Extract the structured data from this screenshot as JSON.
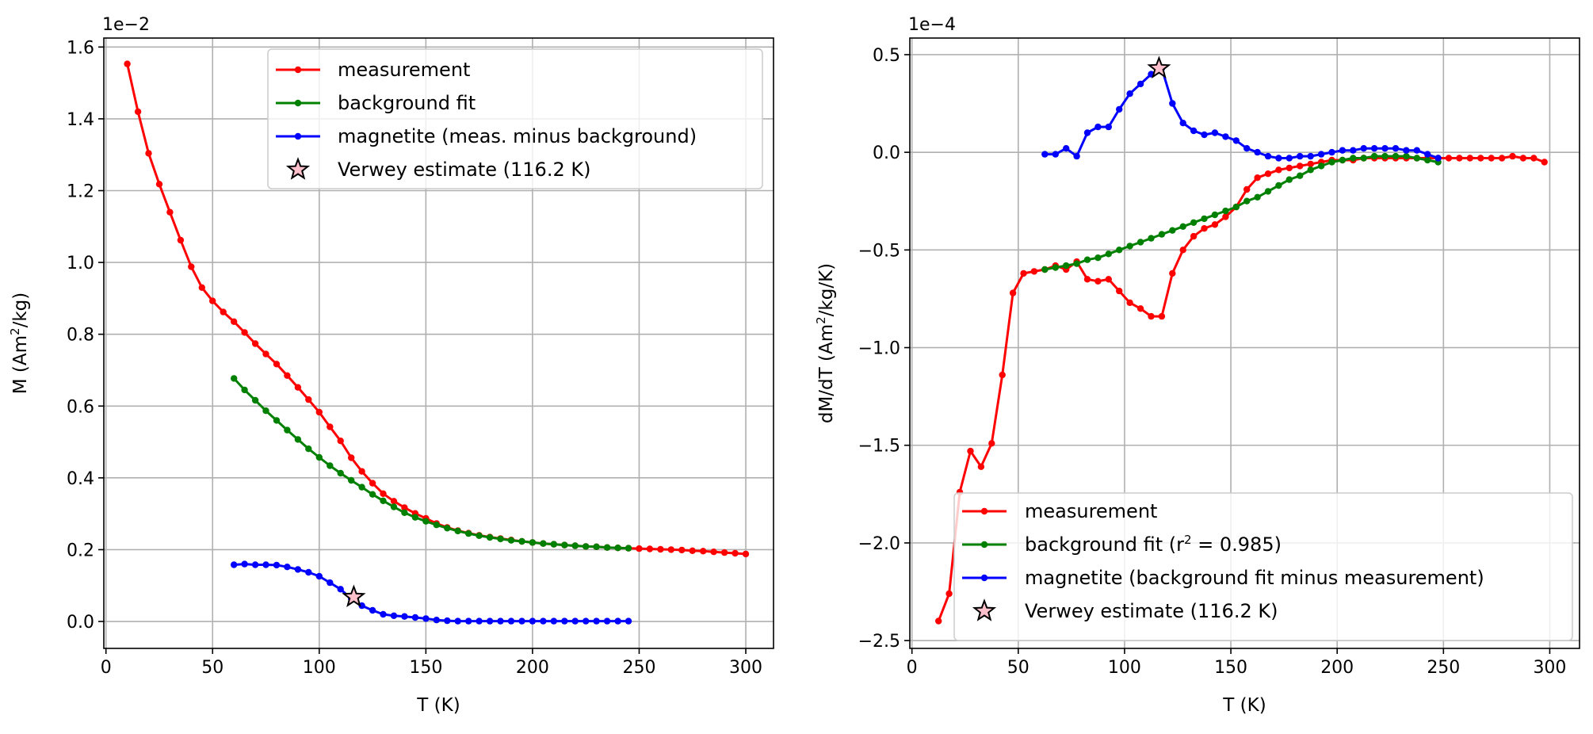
{
  "chart_data": [
    {
      "type": "line",
      "xlabel": "T (K)",
      "ylabel": "M (Am²/kg)",
      "ylabel_parts": {
        "pre": "M (Am",
        "sup": "2",
        "post": "/kg)"
      },
      "offset_label": {
        "base": "1e",
        "exp": "−2"
      },
      "scale": 0.01,
      "xlim": [
        -1,
        313
      ],
      "ylim": [
        -0.075,
        1.625
      ],
      "xticks": [
        0,
        50,
        100,
        150,
        200,
        250,
        300
      ],
      "xtick_labels": [
        "0",
        "50",
        "100",
        "150",
        "200",
        "250",
        "300"
      ],
      "yticks": [
        0,
        0.2,
        0.4,
        0.6,
        0.8,
        1.0,
        1.2,
        1.4,
        1.6
      ],
      "ytick_labels": [
        "0.0",
        "0.2",
        "0.4",
        "0.6",
        "0.8",
        "1.0",
        "1.2",
        "1.4",
        "1.6"
      ],
      "grid": true,
      "legend_position": "upper-center",
      "series": [
        {
          "name": "measurement",
          "color": "#ff0000",
          "x": [
            10,
            15,
            20,
            25,
            30,
            35,
            40,
            45,
            50,
            55,
            60,
            65,
            70,
            75,
            80,
            85,
            90,
            95,
            100,
            105,
            110,
            115,
            120,
            125,
            130,
            135,
            140,
            145,
            150,
            155,
            160,
            165,
            170,
            175,
            180,
            185,
            190,
            195,
            200,
            205,
            210,
            215,
            220,
            225,
            230,
            235,
            240,
            245,
            250,
            255,
            260,
            265,
            270,
            275,
            280,
            285,
            290,
            295,
            300
          ],
          "y": [
            1.553,
            1.42,
            1.304,
            1.218,
            1.14,
            1.062,
            0.988,
            0.93,
            0.893,
            0.862,
            0.835,
            0.805,
            0.774,
            0.745,
            0.717,
            0.685,
            0.652,
            0.618,
            0.583,
            0.542,
            0.503,
            0.456,
            0.418,
            0.385,
            0.356,
            0.335,
            0.317,
            0.301,
            0.287,
            0.273,
            0.262,
            0.253,
            0.246,
            0.24,
            0.235,
            0.231,
            0.227,
            0.223,
            0.22,
            0.217,
            0.215,
            0.213,
            0.211,
            0.209,
            0.208,
            0.206,
            0.205,
            0.204,
            0.203,
            0.202,
            0.201,
            0.2,
            0.199,
            0.197,
            0.196,
            0.194,
            0.192,
            0.19,
            0.188
          ]
        },
        {
          "name": "background fit",
          "color": "#008000",
          "x": [
            60,
            65,
            70,
            75,
            80,
            85,
            90,
            95,
            100,
            105,
            110,
            115,
            120,
            125,
            130,
            135,
            140,
            145,
            150,
            155,
            160,
            165,
            170,
            175,
            180,
            185,
            190,
            195,
            200,
            205,
            210,
            215,
            220,
            225,
            230,
            235,
            240,
            245
          ],
          "y": [
            0.677,
            0.645,
            0.616,
            0.587,
            0.56,
            0.533,
            0.507,
            0.481,
            0.457,
            0.434,
            0.413,
            0.393,
            0.374,
            0.354,
            0.336,
            0.319,
            0.303,
            0.29,
            0.279,
            0.269,
            0.26,
            0.252,
            0.245,
            0.239,
            0.234,
            0.23,
            0.226,
            0.223,
            0.22,
            0.217,
            0.215,
            0.213,
            0.211,
            0.209,
            0.208,
            0.206,
            0.205,
            0.204
          ]
        },
        {
          "name": "magnetite (meas. minus background)",
          "color": "#0000ff",
          "x": [
            60,
            65,
            70,
            75,
            80,
            85,
            90,
            95,
            100,
            105,
            110,
            115,
            120,
            125,
            130,
            135,
            140,
            145,
            150,
            155,
            160,
            165,
            170,
            175,
            180,
            185,
            190,
            195,
            200,
            205,
            210,
            215,
            220,
            225,
            230,
            235,
            240,
            245
          ],
          "y": [
            0.158,
            0.16,
            0.158,
            0.158,
            0.157,
            0.152,
            0.145,
            0.137,
            0.126,
            0.108,
            0.09,
            0.063,
            0.044,
            0.031,
            0.02,
            0.016,
            0.014,
            0.011,
            0.008,
            0.004,
            0.002,
            0.001,
            0.001,
            0.001,
            0.001,
            0.001,
            0.001,
            0.001,
            0.001,
            0.001,
            0.001,
            0.001,
            0.001,
            0.001,
            0.001,
            0.001,
            0.001,
            0.001
          ]
        }
      ],
      "marker": {
        "name": "Verwey estimate (116.2 K)",
        "x": 116.2,
        "y": 0.068,
        "facecolor": "#ffc0cb"
      }
    },
    {
      "type": "line",
      "xlabel": "T (K)",
      "ylabel": "dM/dT (Am²/kg/K)",
      "ylabel_parts": {
        "pre": "dM/dT (Am",
        "sup": "2",
        "post": "/kg/K)"
      },
      "offset_label": {
        "base": "1e",
        "exp": "−4"
      },
      "scale": 0.0001,
      "xlim": [
        -1,
        314
      ],
      "ylim": [
        -2.54,
        0.585
      ],
      "xticks": [
        0,
        50,
        100,
        150,
        200,
        250,
        300
      ],
      "xtick_labels": [
        "0",
        "50",
        "100",
        "150",
        "200",
        "250",
        "300"
      ],
      "yticks": [
        -2.5,
        -2.0,
        -1.5,
        -1.0,
        -0.5,
        0.0,
        0.5
      ],
      "ytick_labels": [
        "−2.5",
        "−2.0",
        "−1.5",
        "−1.0",
        "−0.5",
        "0.0",
        "0.5"
      ],
      "grid": true,
      "legend_position": "lower-right",
      "series": [
        {
          "name": "measurement",
          "color": "#ff0000",
          "x": [
            12.5,
            17.5,
            22.5,
            27.5,
            32.5,
            37.5,
            42.5,
            47.5,
            52.5,
            57.5,
            62.5,
            67.5,
            72.5,
            77.5,
            82.5,
            87.5,
            92.5,
            97.5,
            102.5,
            107.5,
            112.5,
            117.5,
            122.5,
            127.5,
            132.5,
            137.5,
            142.5,
            147.5,
            152.5,
            157.5,
            162.5,
            167.5,
            172.5,
            177.5,
            182.5,
            187.5,
            192.5,
            197.5,
            202.5,
            207.5,
            212.5,
            217.5,
            222.5,
            227.5,
            232.5,
            237.5,
            242.5,
            247.5,
            252.5,
            257.5,
            262.5,
            267.5,
            272.5,
            277.5,
            282.5,
            287.5,
            292.5,
            297.5
          ],
          "y": [
            -2.4,
            -2.26,
            -1.74,
            -1.53,
            -1.61,
            -1.49,
            -1.14,
            -0.72,
            -0.62,
            -0.61,
            -0.6,
            -0.58,
            -0.6,
            -0.56,
            -0.65,
            -0.66,
            -0.65,
            -0.71,
            -0.77,
            -0.8,
            -0.84,
            -0.84,
            -0.62,
            -0.5,
            -0.43,
            -0.39,
            -0.37,
            -0.33,
            -0.28,
            -0.19,
            -0.13,
            -0.11,
            -0.09,
            -0.08,
            -0.07,
            -0.06,
            -0.05,
            -0.04,
            -0.04,
            -0.04,
            -0.03,
            -0.03,
            -0.03,
            -0.03,
            -0.03,
            -0.03,
            -0.03,
            -0.03,
            -0.03,
            -0.03,
            -0.03,
            -0.03,
            -0.03,
            -0.03,
            -0.02,
            -0.03,
            -0.03,
            -0.05
          ]
        },
        {
          "name": "background fit (r² = 0.985)",
          "name_parts": {
            "pre": "background fit (r",
            "sup": "2",
            "post": " = 0.985)"
          },
          "color": "#008000",
          "x": [
            62.5,
            67.5,
            72.5,
            77.5,
            82.5,
            87.5,
            92.5,
            97.5,
            102.5,
            107.5,
            112.5,
            117.5,
            122.5,
            127.5,
            132.5,
            137.5,
            142.5,
            147.5,
            152.5,
            157.5,
            162.5,
            167.5,
            172.5,
            177.5,
            182.5,
            187.5,
            192.5,
            197.5,
            202.5,
            207.5,
            212.5,
            217.5,
            222.5,
            227.5,
            232.5,
            237.5,
            242.5,
            247.5
          ],
          "y": [
            -0.6,
            -0.59,
            -0.58,
            -0.57,
            -0.55,
            -0.54,
            -0.52,
            -0.5,
            -0.48,
            -0.46,
            -0.44,
            -0.42,
            -0.4,
            -0.38,
            -0.36,
            -0.34,
            -0.32,
            -0.3,
            -0.28,
            -0.25,
            -0.23,
            -0.2,
            -0.17,
            -0.14,
            -0.12,
            -0.09,
            -0.07,
            -0.05,
            -0.04,
            -0.03,
            -0.03,
            -0.02,
            -0.02,
            -0.02,
            -0.02,
            -0.03,
            -0.04,
            -0.05
          ]
        },
        {
          "name": "magnetite (background fit minus measurement)",
          "color": "#0000ff",
          "x": [
            62.5,
            67.5,
            72.5,
            77.5,
            82.5,
            87.5,
            92.5,
            97.5,
            102.5,
            107.5,
            112.5,
            117.5,
            122.5,
            127.5,
            132.5,
            137.5,
            142.5,
            147.5,
            152.5,
            157.5,
            162.5,
            167.5,
            172.5,
            177.5,
            182.5,
            187.5,
            192.5,
            197.5,
            202.5,
            207.5,
            212.5,
            217.5,
            222.5,
            227.5,
            232.5,
            237.5,
            242.5,
            247.5
          ],
          "y": [
            -0.01,
            -0.01,
            0.02,
            -0.02,
            0.1,
            0.13,
            0.13,
            0.22,
            0.3,
            0.35,
            0.4,
            0.43,
            0.25,
            0.15,
            0.11,
            0.09,
            0.1,
            0.08,
            0.06,
            0.02,
            0.0,
            -0.02,
            -0.03,
            -0.03,
            -0.02,
            -0.02,
            -0.01,
            0.0,
            0.01,
            0.01,
            0.02,
            0.02,
            0.02,
            0.02,
            0.01,
            0.01,
            -0.01,
            -0.03
          ]
        }
      ],
      "marker": {
        "name": "Verwey estimate (116.2 K)",
        "x": 116.2,
        "y": 0.43,
        "facecolor": "#ffc0cb"
      }
    }
  ]
}
